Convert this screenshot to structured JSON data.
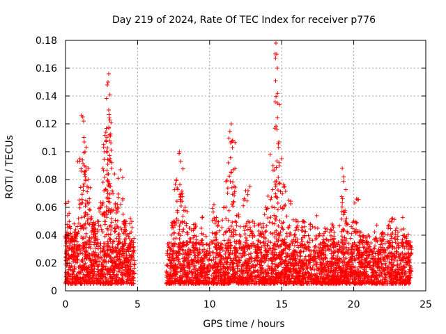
{
  "chart_data": {
    "type": "scatter",
    "title": "Day 219 of 2024, Rate Of TEC Index for receiver p776",
    "xlabel": "GPS time / hours",
    "ylabel": "ROTI / TECUs",
    "xlim": [
      0,
      25
    ],
    "ylim": [
      0,
      0.18
    ],
    "x_ticks": [
      0,
      5,
      10,
      15,
      20,
      25
    ],
    "y_ticks": [
      0,
      0.02,
      0.04,
      0.06,
      0.08,
      0.1,
      0.12,
      0.14,
      0.16,
      0.18
    ],
    "x_tick_labels": [
      "0",
      "5",
      "10",
      "15",
      "20",
      "25"
    ],
    "y_tick_labels": [
      "0",
      "0.02",
      "0.04",
      "0.06",
      "0.08",
      "0.1",
      "0.12",
      "0.14",
      "0.16",
      "0.18"
    ],
    "grid": true,
    "marker": "+",
    "marker_color": "#ff0000",
    "series": [
      {
        "segments": [
          {
            "x_start": 0.0,
            "x_end": 4.8
          },
          {
            "x_start": 7.0,
            "x_end": 24.0
          }
        ],
        "baseline_range": [
          0.005,
          0.035
        ],
        "points": [
          {
            "x": 0.1,
            "y": 0.042
          },
          {
            "x": 0.2,
            "y": 0.064
          },
          {
            "x": 0.3,
            "y": 0.046
          },
          {
            "x": 0.5,
            "y": 0.038
          },
          {
            "x": 0.7,
            "y": 0.044
          },
          {
            "x": 0.9,
            "y": 0.052
          },
          {
            "x": 1.0,
            "y": 0.095
          },
          {
            "x": 1.1,
            "y": 0.126
          },
          {
            "x": 1.2,
            "y": 0.125
          },
          {
            "x": 1.3,
            "y": 0.107
          },
          {
            "x": 1.35,
            "y": 0.1
          },
          {
            "x": 1.4,
            "y": 0.08
          },
          {
            "x": 1.5,
            "y": 0.075
          },
          {
            "x": 1.6,
            "y": 0.088
          },
          {
            "x": 1.7,
            "y": 0.058
          },
          {
            "x": 1.8,
            "y": 0.052
          },
          {
            "x": 2.0,
            "y": 0.047
          },
          {
            "x": 2.2,
            "y": 0.05
          },
          {
            "x": 2.4,
            "y": 0.06
          },
          {
            "x": 2.6,
            "y": 0.078
          },
          {
            "x": 2.7,
            "y": 0.1
          },
          {
            "x": 2.8,
            "y": 0.114
          },
          {
            "x": 2.9,
            "y": 0.148
          },
          {
            "x": 2.95,
            "y": 0.15
          },
          {
            "x": 3.0,
            "y": 0.156
          },
          {
            "x": 3.0,
            "y": 0.13
          },
          {
            "x": 3.05,
            "y": 0.108
          },
          {
            "x": 3.1,
            "y": 0.095
          },
          {
            "x": 3.2,
            "y": 0.088
          },
          {
            "x": 3.3,
            "y": 0.07
          },
          {
            "x": 3.4,
            "y": 0.084
          },
          {
            "x": 3.6,
            "y": 0.062
          },
          {
            "x": 3.8,
            "y": 0.087
          },
          {
            "x": 4.0,
            "y": 0.055
          },
          {
            "x": 4.2,
            "y": 0.05
          },
          {
            "x": 4.5,
            "y": 0.052
          },
          {
            "x": 7.5,
            "y": 0.05
          },
          {
            "x": 7.7,
            "y": 0.08
          },
          {
            "x": 7.9,
            "y": 0.1
          },
          {
            "x": 8.0,
            "y": 0.093
          },
          {
            "x": 8.1,
            "y": 0.07
          },
          {
            "x": 8.3,
            "y": 0.06
          },
          {
            "x": 8.6,
            "y": 0.045
          },
          {
            "x": 9.0,
            "y": 0.048
          },
          {
            "x": 9.5,
            "y": 0.053
          },
          {
            "x": 10.3,
            "y": 0.062
          },
          {
            "x": 10.5,
            "y": 0.05
          },
          {
            "x": 11.0,
            "y": 0.06
          },
          {
            "x": 11.3,
            "y": 0.092
          },
          {
            "x": 11.5,
            "y": 0.12
          },
          {
            "x": 11.6,
            "y": 0.108
          },
          {
            "x": 11.7,
            "y": 0.075
          },
          {
            "x": 12.0,
            "y": 0.055
          },
          {
            "x": 12.5,
            "y": 0.072
          },
          {
            "x": 12.8,
            "y": 0.075
          },
          {
            "x": 13.0,
            "y": 0.05
          },
          {
            "x": 13.5,
            "y": 0.048
          },
          {
            "x": 13.9,
            "y": 0.06
          },
          {
            "x": 14.2,
            "y": 0.098
          },
          {
            "x": 14.4,
            "y": 0.09
          },
          {
            "x": 14.6,
            "y": 0.178
          },
          {
            "x": 14.65,
            "y": 0.17
          },
          {
            "x": 14.7,
            "y": 0.16
          },
          {
            "x": 14.7,
            "y": 0.135
          },
          {
            "x": 14.8,
            "y": 0.107
          },
          {
            "x": 15.0,
            "y": 0.095
          },
          {
            "x": 15.2,
            "y": 0.075
          },
          {
            "x": 15.5,
            "y": 0.065
          },
          {
            "x": 16.0,
            "y": 0.05
          },
          {
            "x": 16.5,
            "y": 0.05
          },
          {
            "x": 17.0,
            "y": 0.048
          },
          {
            "x": 17.5,
            "y": 0.045
          },
          {
            "x": 18.0,
            "y": 0.045
          },
          {
            "x": 18.5,
            "y": 0.048
          },
          {
            "x": 19.2,
            "y": 0.088
          },
          {
            "x": 19.3,
            "y": 0.082
          },
          {
            "x": 19.5,
            "y": 0.052
          },
          {
            "x": 20.0,
            "y": 0.05
          },
          {
            "x": 20.2,
            "y": 0.066
          },
          {
            "x": 20.5,
            "y": 0.042
          },
          {
            "x": 21.0,
            "y": 0.04
          },
          {
            "x": 21.5,
            "y": 0.038
          },
          {
            "x": 22.0,
            "y": 0.042
          },
          {
            "x": 22.5,
            "y": 0.05
          },
          {
            "x": 22.7,
            "y": 0.052
          },
          {
            "x": 23.0,
            "y": 0.045
          },
          {
            "x": 23.5,
            "y": 0.04
          },
          {
            "x": 23.8,
            "y": 0.035
          }
        ]
      }
    ]
  }
}
